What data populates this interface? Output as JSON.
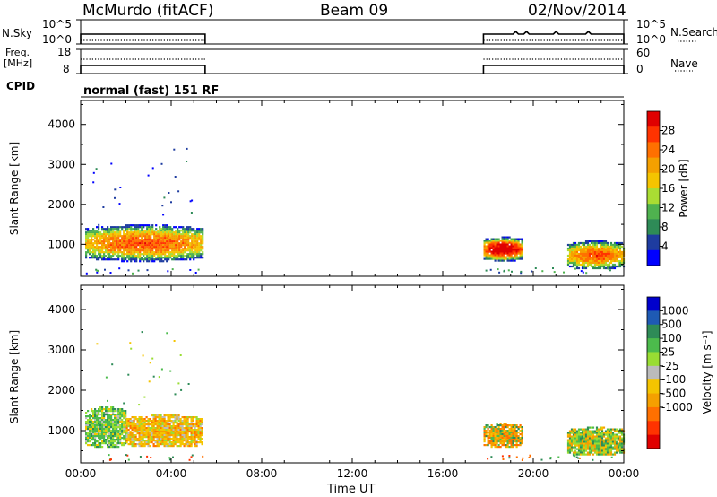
{
  "header": {
    "station": "McMurdo (fitACF)",
    "beam": "Beam 09",
    "date": "02/Nov/2014"
  },
  "strips": {
    "nsky_label": "N.Sky",
    "nsky_ticks": [
      "10^5",
      "10^0"
    ],
    "nsearch_label": "N.Search",
    "nsearch_ticks": [
      "10^5",
      "10^0"
    ],
    "freq_label": "Freq.",
    "freq_unit": "[MHz]",
    "freq_ticks": [
      "18",
      "8"
    ],
    "nave_label": "Nave",
    "nave_ticks": [
      "60",
      "0"
    ],
    "cpid_label": "CPID",
    "cpid_text": "normal (fast) 151 RF",
    "active_intervals_hours": [
      [
        0.0,
        5.5
      ],
      [
        17.8,
        24.0
      ]
    ]
  },
  "chart_data": [
    {
      "type": "heatmap",
      "name": "power-panel",
      "ylabel": "Slant Range [km]",
      "xlabel": "",
      "xlim": [
        0,
        24
      ],
      "ylim": [
        200,
        4600
      ],
      "y_ticks": [
        1000,
        2000,
        3000,
        4000
      ],
      "colorbar": {
        "label": "Power [dB]",
        "range": [
          0,
          32
        ],
        "ticks": [
          "4",
          "8",
          "12",
          "16",
          "20",
          "24",
          "28"
        ],
        "colors": [
          "#0000ff",
          "#1e3ca0",
          "#2e8b57",
          "#4fb24f",
          "#aadd33",
          "#f5c400",
          "#f5a000",
          "#ff7000",
          "#ff3300",
          "#e00000"
        ]
      },
      "echo_regions": [
        {
          "t": [
            0.2,
            5.4
          ],
          "range_km": [
            600,
            1500
          ],
          "level": "4-20 dB"
        },
        {
          "t": [
            17.8,
            19.5
          ],
          "range_km": [
            600,
            1200
          ],
          "level": "4-28 dB"
        },
        {
          "t": [
            21.5,
            24.0
          ],
          "range_km": [
            400,
            1100
          ],
          "level": "4-20 dB"
        }
      ]
    },
    {
      "type": "heatmap",
      "name": "velocity-panel",
      "ylabel": "Slant Range [km]",
      "xlabel": "Time UT",
      "xlim": [
        0,
        24
      ],
      "ylim": [
        200,
        4600
      ],
      "y_ticks": [
        1000,
        2000,
        3000,
        4000
      ],
      "x_ticks": [
        "00:00",
        "04:00",
        "08:00",
        "12:00",
        "16:00",
        "20:00",
        "00:00"
      ],
      "colorbar": {
        "label": "Velocity [m s⁻¹]",
        "ticks": [
          "1000",
          "500",
          "100",
          "25",
          "-25",
          "-100",
          "-500",
          "-1000"
        ],
        "colors": [
          "#0000cc",
          "#1e5ab4",
          "#2e8b57",
          "#4cbb4c",
          "#99dd33",
          "#bbbbbb",
          "#f5c400",
          "#f5a000",
          "#ff7000",
          "#ff3300",
          "#e00000"
        ]
      },
      "echo_regions": [
        {
          "t": [
            0.2,
            2.0
          ],
          "range_km": [
            600,
            1600
          ],
          "level": "green / mixed"
        },
        {
          "t": [
            2.0,
            5.4
          ],
          "range_km": [
            600,
            1400
          ],
          "level": "yellow-orange (negative)"
        },
        {
          "t": [
            17.8,
            19.5
          ],
          "range_km": [
            600,
            1200
          ],
          "level": "orange / green"
        },
        {
          "t": [
            21.5,
            24.0
          ],
          "range_km": [
            400,
            1100
          ],
          "level": "green / yellow-orange"
        }
      ]
    }
  ]
}
